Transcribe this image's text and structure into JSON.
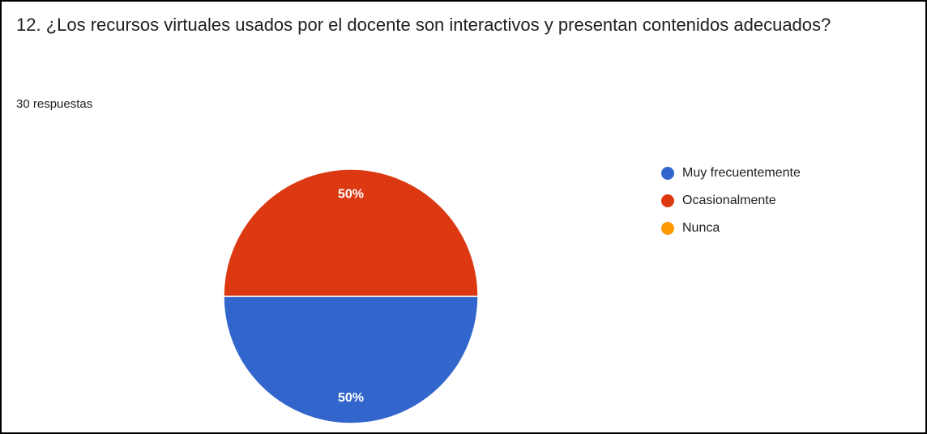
{
  "chart_data": {
    "type": "pie",
    "title": "12. ¿Los recursos virtuales usados por el docente son interactivos y presentan contenidos adecuados?",
    "subtitle": "30 respuestas",
    "categories": [
      "Muy frecuentemente",
      "Ocasionalmente",
      "Nunca"
    ],
    "values": [
      50,
      50,
      0
    ],
    "value_labels": [
      "50%",
      "50%",
      null
    ],
    "colors": [
      "#3366cc",
      "#dc3912",
      "#ff9900"
    ],
    "legend": "right"
  }
}
